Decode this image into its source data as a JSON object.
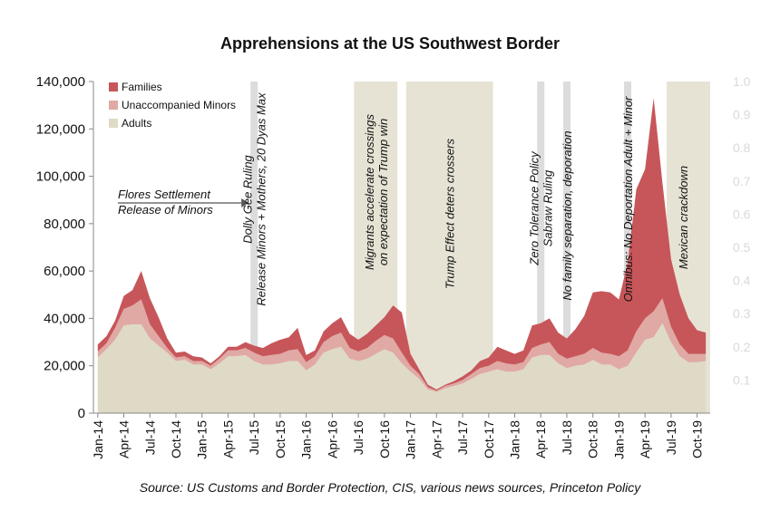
{
  "chart_data": {
    "type": "area",
    "title": "Apprehensions at the US Southwest Border",
    "source": "Source: US Customs and Border Protection, CIS, various news sources, Princeton Policy",
    "xlabel": "",
    "ylabel": "",
    "ylim": [
      0,
      140000
    ],
    "y_ticks": [
      "0",
      "20,000",
      "40,000",
      "60,000",
      "80,000",
      "100,000",
      "120,000",
      "140,000"
    ],
    "secondary_ylim": [
      0,
      1.0
    ],
    "secondary_y_ticks": [
      "0.1",
      "0.2",
      "0.3",
      "0.4",
      "0.5",
      "0.6",
      "0.7",
      "0.8",
      "0.9",
      "1.0"
    ],
    "x_tick_labels": [
      "Jan-14",
      "Apr-14",
      "Jul-14",
      "Oct-14",
      "Jan-15",
      "Apr-15",
      "Jul-15",
      "Oct-15",
      "Jan-16",
      "Apr-16",
      "Jul-16",
      "Oct-16",
      "Jan-17",
      "Apr-17",
      "Jul-17",
      "Oct-17",
      "Jan-18",
      "Apr-18",
      "Jul-18",
      "Oct-18",
      "Jan-19",
      "Apr-19",
      "Jul-19",
      "Oct-19"
    ],
    "x": [
      "2014-01",
      "2014-02",
      "2014-03",
      "2014-04",
      "2014-05",
      "2014-06",
      "2014-07",
      "2014-08",
      "2014-09",
      "2014-10",
      "2014-11",
      "2014-12",
      "2015-01",
      "2015-02",
      "2015-03",
      "2015-04",
      "2015-05",
      "2015-06",
      "2015-07",
      "2015-08",
      "2015-09",
      "2015-10",
      "2015-11",
      "2015-12",
      "2016-01",
      "2016-02",
      "2016-03",
      "2016-04",
      "2016-05",
      "2016-06",
      "2016-07",
      "2016-08",
      "2016-09",
      "2016-10",
      "2016-11",
      "2016-12",
      "2017-01",
      "2017-02",
      "2017-03",
      "2017-04",
      "2017-05",
      "2017-06",
      "2017-07",
      "2017-08",
      "2017-09",
      "2017-10",
      "2017-11",
      "2017-12",
      "2018-01",
      "2018-02",
      "2018-03",
      "2018-04",
      "2018-05",
      "2018-06",
      "2018-07",
      "2018-08",
      "2018-09",
      "2018-10",
      "2018-11",
      "2018-12",
      "2019-01",
      "2019-02",
      "2019-03",
      "2019-04",
      "2019-05",
      "2019-06",
      "2019-07",
      "2019-08",
      "2019-09",
      "2019-10",
      "2019-11"
    ],
    "series": [
      {
        "name": "Adults",
        "color": "#dedac6",
        "values": [
          23500,
          27000,
          31000,
          37000,
          37500,
          37500,
          31500,
          28500,
          25500,
          22000,
          22500,
          20500,
          20500,
          18500,
          21000,
          24000,
          24000,
          24500,
          22000,
          20500,
          20500,
          21000,
          22000,
          22000,
          18000,
          20500,
          25500,
          27000,
          28000,
          23000,
          22000,
          23000,
          25000,
          27000,
          25500,
          21000,
          17500,
          14500,
          10000,
          9000,
          10500,
          11500,
          12500,
          14500,
          16500,
          17500,
          18500,
          17500,
          17500,
          18500,
          23500,
          24500,
          24500,
          21000,
          19000,
          20000,
          20500,
          22500,
          20500,
          20500,
          18500,
          20000,
          25500,
          31000,
          32000,
          38000,
          30000,
          24000,
          21500,
          21500,
          22000
        ]
      },
      {
        "name": "Unaccompanied Minors",
        "color": "#e0a9a4",
        "values": [
          2500,
          2500,
          5000,
          7000,
          8000,
          10500,
          6000,
          4000,
          2000,
          1500,
          1500,
          1500,
          1500,
          1500,
          2000,
          2500,
          2500,
          3000,
          3500,
          3500,
          4000,
          4000,
          4500,
          5000,
          3500,
          3500,
          4500,
          5500,
          6000,
          4500,
          4000,
          4500,
          5500,
          6000,
          6000,
          4500,
          2500,
          2000,
          1000,
          500,
          1000,
          1000,
          1500,
          2000,
          2500,
          2500,
          3500,
          3500,
          3000,
          3000,
          4000,
          4500,
          5500,
          4000,
          4000,
          4000,
          4500,
          5000,
          5000,
          4500,
          5500,
          6500,
          9000,
          9000,
          11000,
          10500,
          6500,
          5000,
          3500,
          3500,
          3000
        ]
      },
      {
        "name": "Families",
        "color": "#c7565a",
        "values": [
          3000,
          3000,
          3000,
          5500,
          6500,
          12000,
          11000,
          8000,
          4000,
          2000,
          2000,
          2000,
          1500,
          1000,
          1000,
          1500,
          1500,
          2500,
          3000,
          3500,
          5000,
          6000,
          5500,
          9000,
          3000,
          2500,
          4500,
          5500,
          6500,
          6000,
          5000,
          6000,
          6500,
          7500,
          14000,
          17000,
          5000,
          2000,
          1000,
          500,
          500,
          1000,
          1500,
          1500,
          3000,
          3500,
          6000,
          5500,
          4500,
          5000,
          9500,
          9000,
          10000,
          9000,
          8500,
          11500,
          16000,
          23500,
          26000,
          26000,
          24000,
          37000,
          60000,
          63000,
          90000,
          49000,
          28500,
          21000,
          15000,
          10000,
          9000
        ]
      }
    ],
    "events": [
      {
        "label": "Flores Settlement\nRelease of Minors",
        "type": "arrow",
        "month_index": 18
      },
      {
        "label": "Dolly Gee Ruling\nRelease Minors + Mothers, 20 Dyas Max",
        "type": "line",
        "start_index": 18,
        "end_index": 18
      },
      {
        "label": "Migrants accelerate crossings\non expectation of Trump win",
        "type": "band",
        "start_index": 30,
        "end_index": 34
      },
      {
        "label": "Trump Effect deters crossers",
        "type": "band",
        "start_index": 36,
        "end_index": 45
      },
      {
        "label": "Zero Tolerance Policy\nSabraw Ruling",
        "type": "line",
        "start_index": 51,
        "end_index": 51
      },
      {
        "label": "No family separation, deporation",
        "type": "line",
        "start_index": 54,
        "end_index": 54
      },
      {
        "label": "Omnibus: No Deportation Adult + Minor",
        "type": "line",
        "start_index": 61,
        "end_index": 61
      },
      {
        "label": "Mexican crackdown",
        "type": "band",
        "start_index": 66,
        "end_index": 70
      }
    ],
    "legend_position": "top-left",
    "grid": false
  }
}
